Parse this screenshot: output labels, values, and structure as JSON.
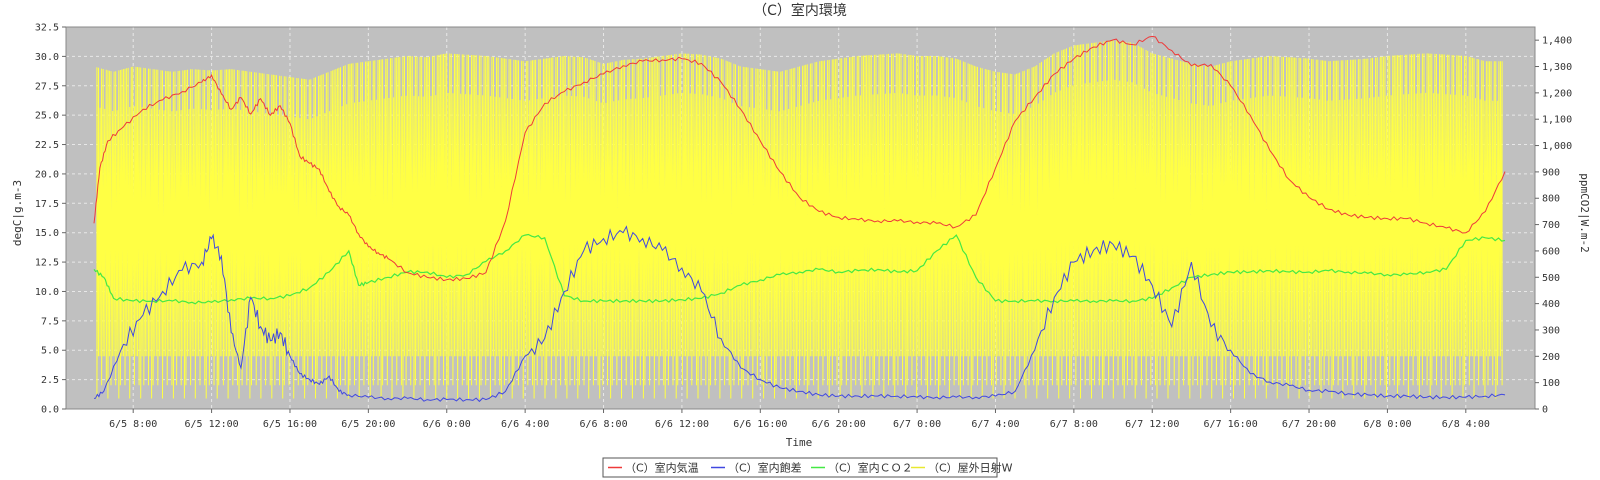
{
  "chart_data": {
    "type": "line",
    "title": "（C）室内環境",
    "xlabel": "Time",
    "ylabel_left": "degC|g.m-3",
    "ylabel_right": "ppmCO2|W.m-2",
    "x_ticks": [
      "6/5 8:00",
      "6/5 12:00",
      "6/5 16:00",
      "6/5 20:00",
      "6/6 0:00",
      "6/6 4:00",
      "6/6 8:00",
      "6/6 12:00",
      "6/6 16:00",
      "6/6 20:00",
      "6/7 0:00",
      "6/7 4:00",
      "6/7 8:00",
      "6/7 12:00",
      "6/7 16:00",
      "6/7 20:00",
      "6/8 0:00",
      "6/8 4:00"
    ],
    "x_range_hours": [
      0,
      72
    ],
    "left_axis": {
      "range": [
        0,
        32.5
      ],
      "ticks": [
        "0.0",
        "2.5",
        "5.0",
        "7.5",
        "10.0",
        "12.5",
        "15.0",
        "17.5",
        "20.0",
        "22.5",
        "25.0",
        "27.5",
        "30.0",
        "32.5"
      ]
    },
    "right_axis": {
      "range": [
        0,
        1450
      ],
      "ticks": [
        "0",
        "100",
        "200",
        "300",
        "400",
        "500",
        "600",
        "700",
        "800",
        "900",
        "1,000",
        "1,100",
        "1,200",
        "1,300",
        "1,400"
      ]
    },
    "grid": true,
    "legend_position": "bottom",
    "colors": {
      "plot_bg": "#c0c0c0",
      "grid": "#e8e8e8"
    },
    "series": [
      {
        "name": "（C）室内気温",
        "axis": "left",
        "color": "#ee3a3a",
        "x": [
          0,
          0.3,
          0.7,
          1.5,
          2.5,
          3.5,
          4.5,
          5.5,
          6.0,
          6.5,
          7.0,
          7.5,
          8.0,
          8.5,
          9.0,
          9.5,
          10,
          10.5,
          11,
          11.5,
          12,
          12.5,
          13,
          13.5,
          14,
          14.5,
          15,
          16,
          17,
          18,
          19,
          20,
          21,
          22,
          23,
          24,
          25,
          26,
          27,
          28,
          29,
          30,
          31,
          32,
          33,
          34,
          35,
          36,
          37,
          38,
          39,
          40,
          41,
          42,
          43,
          44,
          45,
          46,
          47,
          48,
          49,
          50,
          51,
          52,
          53,
          54,
          55,
          56,
          57,
          58,
          59,
          60,
          61,
          62,
          63,
          64,
          65,
          66,
          67,
          68,
          69,
          70,
          71,
          72
        ],
        "y": [
          15.8,
          20.5,
          22.8,
          24.0,
          25.5,
          26.3,
          27.0,
          27.8,
          28.4,
          26.8,
          25.5,
          26.5,
          25.1,
          26.4,
          25.0,
          25.8,
          24.3,
          21.5,
          20.9,
          20.4,
          18.5,
          17.2,
          16.5,
          14.9,
          13.8,
          13.3,
          12.8,
          11.6,
          11.2,
          11.0,
          11.1,
          11.6,
          16.0,
          23.5,
          26.0,
          27.0,
          27.8,
          28.5,
          29.2,
          29.6,
          29.7,
          29.8,
          29.4,
          27.8,
          25.5,
          22.8,
          20.2,
          18.0,
          16.8,
          16.3,
          16.1,
          16.0,
          16.0,
          15.9,
          15.8,
          15.5,
          16.5,
          20.5,
          24.5,
          26.5,
          28.5,
          29.8,
          30.8,
          31.4,
          31.0,
          31.7,
          30.5,
          29.2,
          29.3,
          27.5,
          25.0,
          22.0,
          19.5,
          18.0,
          17.0,
          16.5,
          16.3,
          16.2,
          16.2,
          15.8,
          15.4,
          15.0,
          16.8,
          20.2
        ]
      },
      {
        "name": "（C）室内飽差",
        "axis": "left",
        "color": "#4048e0",
        "x": [
          0,
          0.5,
          1.5,
          2.5,
          3.5,
          4.5,
          5.5,
          6.0,
          6.5,
          7.0,
          7.5,
          8.0,
          8.5,
          9.0,
          9.5,
          10,
          10.5,
          11,
          11.5,
          12,
          12.5,
          13,
          14,
          15,
          16,
          17,
          18,
          19,
          20,
          21,
          22,
          23,
          24,
          25,
          26,
          27,
          28,
          29,
          30,
          31,
          32,
          33,
          34,
          35,
          36,
          37,
          38,
          39,
          40,
          41,
          42,
          43,
          44,
          45,
          46,
          47,
          48,
          49,
          50,
          51,
          52,
          53,
          54,
          55,
          56,
          57,
          58,
          59,
          60,
          61,
          62,
          63,
          64,
          65,
          66,
          67,
          68,
          69,
          70,
          71,
          72
        ],
        "y": [
          0.9,
          1.5,
          5.5,
          8.0,
          10.0,
          11.8,
          12.5,
          14.5,
          13.0,
          6.5,
          3.5,
          9.5,
          7.0,
          5.8,
          6.5,
          4.5,
          3.0,
          2.5,
          2.1,
          2.8,
          1.5,
          1.2,
          1.0,
          0.9,
          0.9,
          0.8,
          0.8,
          0.8,
          0.8,
          1.5,
          4.5,
          6.0,
          10.0,
          13.5,
          14.5,
          15.0,
          14.5,
          13.5,
          12.0,
          10.0,
          6.0,
          3.5,
          2.5,
          1.8,
          1.5,
          1.2,
          1.1,
          1.1,
          1.1,
          1.1,
          1.0,
          1.0,
          1.0,
          1.0,
          1.1,
          1.5,
          5.0,
          9.5,
          12.5,
          13.5,
          14.0,
          13.0,
          10.5,
          7.0,
          12.5,
          7.0,
          5.0,
          3.0,
          2.3,
          2.0,
          1.6,
          1.5,
          1.3,
          1.2,
          1.1,
          1.1,
          1.0,
          1.0,
          1.0,
          1.1,
          1.2
        ]
      },
      {
        "name": "（C）室内ＣＯ２",
        "axis": "right",
        "color": "#44e844",
        "x": [
          0,
          0.5,
          1.0,
          2,
          3,
          4,
          5,
          6,
          7,
          8,
          9,
          10,
          11,
          12,
          13,
          13.5,
          14,
          15,
          16,
          17,
          18,
          19,
          20,
          21,
          22,
          23,
          24,
          25,
          26,
          27,
          28,
          29,
          30,
          31,
          32,
          33,
          34,
          35,
          36,
          37,
          38,
          39,
          40,
          41,
          42,
          43,
          44,
          45,
          46,
          47,
          48,
          49,
          50,
          51,
          52,
          53,
          54,
          55,
          56,
          57,
          58,
          59,
          60,
          61,
          62,
          63,
          64,
          65,
          66,
          67,
          68,
          69,
          70,
          71,
          72
        ],
        "y": [
          530,
          500,
          420,
          410,
          410,
          410,
          405,
          405,
          415,
          420,
          420,
          430,
          460,
          520,
          600,
          470,
          480,
          500,
          520,
          520,
          500,
          510,
          560,
          600,
          660,
          650,
          430,
          410,
          410,
          410,
          410,
          410,
          415,
          420,
          440,
          470,
          490,
          510,
          520,
          530,
          520,
          525,
          530,
          520,
          525,
          600,
          660,
          500,
          410,
          410,
          410,
          410,
          410,
          410,
          410,
          410,
          420,
          460,
          500,
          510,
          520,
          520,
          525,
          520,
          520,
          525,
          520,
          515,
          510,
          510,
          520,
          530,
          640,
          650,
          640
        ]
      },
      {
        "name": "（C）屋外日射W",
        "axis": "right",
        "color": "#ffff44",
        "x": [
          0,
          1,
          2,
          3,
          4,
          5,
          6,
          7,
          8,
          9,
          10,
          11,
          12,
          13,
          14,
          15,
          16,
          17,
          18,
          19,
          20,
          21,
          22,
          23,
          24,
          25,
          26,
          27,
          28,
          29,
          30,
          31,
          32,
          33,
          34,
          35,
          36,
          37,
          38,
          39,
          40,
          41,
          42,
          43,
          44,
          45,
          46,
          47,
          48,
          49,
          50,
          51,
          52,
          53,
          54,
          55,
          56,
          57,
          58,
          59,
          60,
          61,
          62,
          63,
          64,
          65,
          66,
          67,
          68,
          69,
          70,
          71,
          72
        ],
        "y": [
          1300,
          1280,
          1300,
          1290,
          1280,
          1290,
          1285,
          1290,
          1280,
          1270,
          1260,
          1250,
          1280,
          1310,
          1320,
          1330,
          1340,
          1335,
          1350,
          1345,
          1340,
          1330,
          1320,
          1330,
          1340,
          1335,
          1310,
          1325,
          1330,
          1340,
          1350,
          1345,
          1330,
          1300,
          1290,
          1280,
          1300,
          1320,
          1330,
          1340,
          1345,
          1350,
          1340,
          1340,
          1330,
          1300,
          1280,
          1270,
          1300,
          1350,
          1380,
          1390,
          1400,
          1390,
          1350,
          1330,
          1310,
          1300,
          1320,
          1330,
          1340,
          1335,
          1330,
          1320,
          1325,
          1330,
          1340,
          1345,
          1350,
          1345,
          1340,
          1320,
          1320
        ]
      }
    ]
  }
}
